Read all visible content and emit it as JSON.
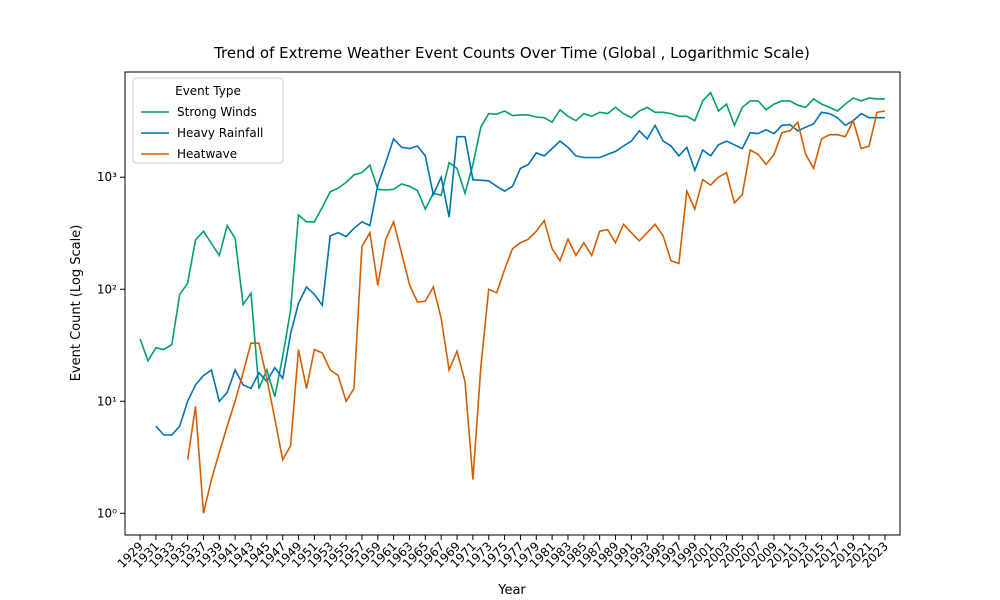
{
  "chart_data": {
    "type": "line",
    "title": "Trend of Extreme Weather Event Counts Over Time (Global , Logarithmic Scale)",
    "x_label": "Year",
    "y_label": "Event Count (Log Scale)",
    "log_y": true,
    "legend_title": "Event Type",
    "legend_loc": "upper left",
    "x": [
      1929,
      1930,
      1931,
      1932,
      1933,
      1934,
      1935,
      1936,
      1937,
      1938,
      1939,
      1940,
      1941,
      1942,
      1943,
      1944,
      1945,
      1946,
      1947,
      1948,
      1949,
      1950,
      1951,
      1952,
      1953,
      1954,
      1955,
      1956,
      1957,
      1958,
      1959,
      1960,
      1961,
      1962,
      1963,
      1964,
      1965,
      1966,
      1967,
      1968,
      1969,
      1970,
      1971,
      1972,
      1973,
      1974,
      1975,
      1976,
      1977,
      1978,
      1979,
      1980,
      1981,
      1982,
      1983,
      1984,
      1985,
      1986,
      1987,
      1988,
      1989,
      1990,
      1991,
      1992,
      1993,
      1994,
      1995,
      1996,
      1997,
      1998,
      1999,
      2000,
      2001,
      2002,
      2003,
      2004,
      2005,
      2006,
      2007,
      2008,
      2009,
      2010,
      2011,
      2012,
      2013,
      2014,
      2015,
      2016,
      2017,
      2018,
      2019,
      2020,
      2021,
      2022,
      2023
    ],
    "xlim": [
      1927.1,
      2024.9
    ],
    "xticks": [
      1929,
      1931,
      1933,
      1935,
      1937,
      1939,
      1941,
      1943,
      1945,
      1947,
      1949,
      1951,
      1953,
      1955,
      1957,
      1959,
      1961,
      1963,
      1965,
      1967,
      1969,
      1971,
      1973,
      1975,
      1977,
      1979,
      1981,
      1983,
      1985,
      1987,
      1989,
      1991,
      1993,
      1995,
      1997,
      1999,
      2001,
      2003,
      2005,
      2007,
      2009,
      2011,
      2013,
      2015,
      2017,
      2019,
      2021,
      2023
    ],
    "ylim": [
      0.64,
      8700
    ],
    "yticks": [
      {
        "value": 1,
        "label": "10⁰"
      },
      {
        "value": 10,
        "label": "10¹"
      },
      {
        "value": 100,
        "label": "10²"
      },
      {
        "value": 1000,
        "label": "10³"
      }
    ],
    "series": [
      {
        "name": "Strong Winds",
        "color": "#029e73",
        "values": [
          36,
          23,
          30,
          29,
          32,
          90,
          113,
          275,
          330,
          256,
          200,
          370,
          285,
          73,
          92,
          13,
          19,
          11,
          25,
          65,
          460,
          400,
          400,
          540,
          740,
          800,
          900,
          1050,
          1100,
          1280,
          780,
          770,
          780,
          870,
          830,
          760,
          520,
          720,
          690,
          1350,
          1200,
          720,
          1300,
          2800,
          3700,
          3650,
          3900,
          3550,
          3600,
          3600,
          3450,
          3400,
          3100,
          4000,
          3500,
          3200,
          3700,
          3500,
          3800,
          3700,
          4200,
          3700,
          3400,
          3900,
          4200,
          3800,
          3800,
          3700,
          3500,
          3500,
          3200,
          4800,
          5700,
          3900,
          4500,
          2900,
          4200,
          4800,
          4800,
          4000,
          4500,
          4800,
          4800,
          4400,
          4200,
          5000,
          4500,
          4200,
          3900,
          4500,
          5100,
          4800,
          5100,
          5000,
          5000
        ]
      },
      {
        "name": "Heavy Rainfall",
        "color": "#0173b2",
        "values": [
          null,
          null,
          6,
          5,
          5,
          6,
          10,
          14,
          17,
          19,
          10,
          12,
          19,
          14,
          13,
          18,
          15,
          20,
          16,
          40,
          75,
          105,
          90,
          72,
          300,
          320,
          295,
          350,
          400,
          370,
          850,
          1350,
          2200,
          1850,
          1800,
          1900,
          1550,
          700,
          1000,
          440,
          2300,
          2300,
          950,
          940,
          930,
          830,
          750,
          830,
          1200,
          1300,
          1650,
          1550,
          1800,
          2100,
          1850,
          1550,
          1500,
          1500,
          1500,
          1600,
          1700,
          1900,
          2100,
          2600,
          2200,
          2900,
          2100,
          1900,
          1550,
          1850,
          1150,
          1750,
          1550,
          1950,
          2100,
          1950,
          1800,
          2500,
          2450,
          2650,
          2450,
          2900,
          2950,
          2600,
          2800,
          3000,
          3800,
          3700,
          3400,
          2900,
          3200,
          3700,
          3400,
          3400,
          3400
        ]
      },
      {
        "name": "Heatwave",
        "color": "#d55e00",
        "values": [
          null,
          null,
          null,
          null,
          null,
          null,
          3,
          9,
          1,
          2,
          3.5,
          6,
          10,
          18,
          33,
          33,
          16,
          7,
          3,
          4,
          29,
          13,
          29,
          27,
          19,
          17,
          10,
          13,
          240,
          320,
          108,
          280,
          400,
          210,
          110,
          77,
          78,
          105,
          55,
          19,
          28,
          15,
          2,
          20,
          100,
          93,
          150,
          230,
          260,
          280,
          330,
          410,
          230,
          180,
          280,
          200,
          260,
          200,
          330,
          340,
          260,
          380,
          320,
          270,
          320,
          380,
          300,
          180,
          170,
          750,
          520,
          950,
          850,
          1000,
          1100,
          590,
          700,
          1750,
          1600,
          1300,
          1600,
          2500,
          2600,
          3100,
          1600,
          1200,
          2200,
          2400,
          2400,
          2300,
          3200,
          1800,
          1900,
          3800,
          3900
        ]
      }
    ]
  }
}
